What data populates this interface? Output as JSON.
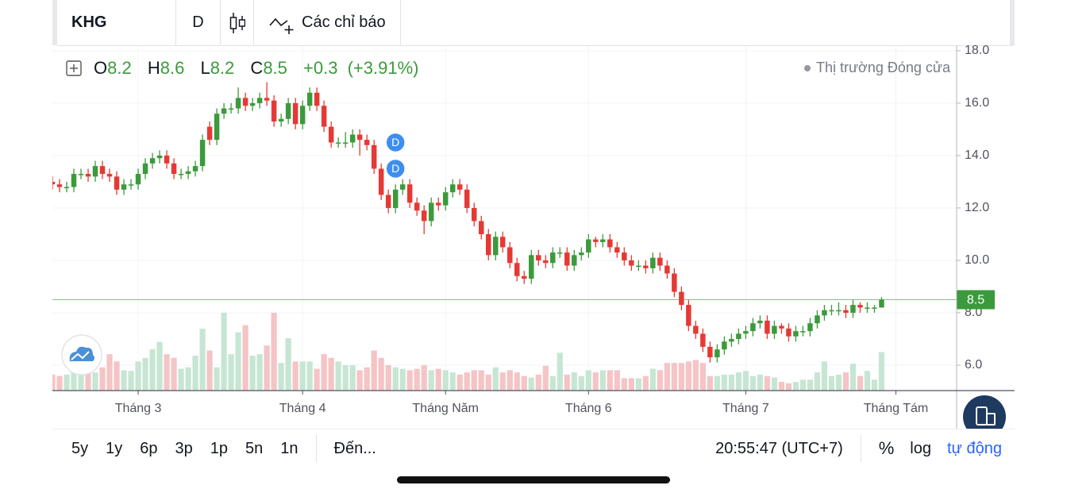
{
  "toolbar": {
    "symbol": "KHG",
    "interval": "D",
    "indicators": "Các chỉ báo"
  },
  "legend": {
    "open_label": "O",
    "high_label": "H",
    "low_label": "L",
    "close_label": "C",
    "change": "+0.3",
    "change_pct": "(+3.91%)"
  },
  "market_status": "Thị trường Đóng cửa",
  "bottom_bar": {
    "ranges": [
      "5y",
      "1y",
      "6p",
      "3p",
      "1p",
      "5n",
      "1n"
    ],
    "goto": "Đến...",
    "time": "20:55:47 (UTC+7)",
    "percent": "%",
    "log": "log",
    "auto": "tự động"
  },
  "chart_data": {
    "type": "candlestick",
    "xlim": [
      0,
      126.5
    ],
    "xticks": [
      {
        "value": 12,
        "label": "Tháng 3"
      },
      {
        "value": 35,
        "label": "Tháng 4"
      },
      {
        "value": 55,
        "label": "Tháng Năm"
      },
      {
        "value": 75,
        "label": "Tháng 6"
      },
      {
        "value": 97,
        "label": "Tháng 7"
      },
      {
        "value": 118,
        "label": "Tháng Tám"
      }
    ],
    "ylim": [
      5.03,
      18.18
    ],
    "yticks": [
      {
        "value": 6,
        "label": "6.0"
      },
      {
        "value": 8,
        "label": "8.0"
      },
      {
        "value": 10,
        "label": "10.0"
      },
      {
        "value": 12,
        "label": "12.0"
      },
      {
        "value": 14,
        "label": "14.0"
      },
      {
        "value": 16,
        "label": "16.0"
      },
      {
        "value": 18,
        "label": "18.0"
      }
    ],
    "grid": true,
    "up_color": "#3b9a3b",
    "down_color": "#e53935",
    "volume_up_color": "#c6e6d3",
    "volume_down_color": "#f5c4c6",
    "open": [
      13.0,
      12.9,
      12.8,
      12.8,
      13.3,
      13.3,
      13.2,
      13.6,
      13.3,
      13.2,
      12.7,
      12.9,
      12.9,
      13.3,
      13.7,
      13.9,
      14.0,
      13.7,
      13.3,
      13.3,
      13.4,
      13.6,
      15.1,
      14.6,
      15.6,
      15.8,
      15.8,
      16.2,
      15.9,
      16.0,
      16.2,
      16.1,
      15.3,
      15.4,
      16.0,
      15.2,
      15.9,
      16.4,
      15.9,
      15.1,
      14.5,
      14.5,
      14.5,
      14.8,
      14.6,
      14.4,
      13.5,
      12.5,
      12.0,
      12.7,
      12.9,
      12.2,
      11.9,
      11.5,
      12.2,
      12.1,
      12.6,
      12.9,
      12.7,
      12.0,
      11.5,
      11.0,
      10.2,
      10.9,
      10.5,
      9.9,
      9.4,
      9.3,
      10.2,
      10.0,
      9.9,
      10.3,
      10.3,
      9.8,
      10.2,
      10.3,
      10.8,
      10.7,
      10.8,
      10.5,
      10.3,
      10.0,
      9.8,
      9.8,
      9.7,
      10.1,
      9.8,
      9.5,
      8.8,
      8.3,
      7.5,
      7.2,
      6.7,
      6.3,
      6.6,
      6.9,
      7.0,
      7.2,
      7.3,
      7.6,
      7.7,
      7.2,
      7.5,
      7.4,
      7.1,
      7.3,
      7.3,
      7.6,
      7.9,
      8.1,
      8.1,
      8.1,
      8.0,
      8.3,
      8.2,
      8.2,
      8.2
    ],
    "high": [
      13.2,
      13.1,
      13.0,
      13.5,
      13.5,
      13.5,
      13.8,
      13.8,
      13.5,
      13.4,
      13.1,
      13.1,
      13.5,
      13.9,
      14.1,
      14.2,
      14.2,
      13.9,
      13.5,
      13.6,
      13.8,
      14.8,
      15.3,
      15.8,
      16.0,
      16.0,
      16.6,
      16.4,
      16.2,
      16.4,
      16.8,
      16.3,
      15.6,
      16.2,
      16.2,
      16.1,
      16.6,
      16.6,
      16.1,
      15.3,
      14.7,
      14.9,
      15.0,
      15.0,
      14.8,
      14.6,
      13.7,
      12.7,
      12.9,
      13.1,
      13.1,
      12.4,
      12.1,
      12.4,
      12.4,
      12.8,
      13.1,
      13.1,
      12.9,
      12.2,
      11.7,
      11.2,
      11.1,
      11.1,
      10.7,
      10.1,
      9.6,
      10.4,
      10.4,
      10.2,
      10.5,
      10.5,
      10.5,
      10.4,
      10.5,
      11.0,
      10.9,
      11.0,
      11.0,
      10.7,
      10.5,
      10.2,
      10.0,
      10.0,
      10.3,
      10.3,
      10.0,
      9.7,
      9.0,
      8.5,
      7.7,
      7.4,
      6.9,
      6.8,
      7.1,
      7.2,
      7.4,
      7.5,
      7.8,
      7.9,
      7.9,
      7.7,
      7.6,
      7.6,
      7.5,
      7.5,
      7.8,
      8.1,
      8.3,
      8.3,
      8.4,
      8.3,
      8.5,
      8.4,
      8.4,
      8.3,
      8.6
    ],
    "low": [
      12.7,
      12.6,
      12.6,
      12.6,
      13.1,
      13.0,
      13.0,
      13.1,
      13.0,
      12.5,
      12.5,
      12.7,
      12.7,
      13.1,
      13.5,
      13.7,
      13.5,
      13.1,
      13.1,
      13.1,
      13.2,
      13.4,
      14.4,
      14.4,
      15.4,
      15.6,
      15.6,
      15.7,
      15.7,
      15.8,
      15.9,
      15.1,
      15.1,
      15.2,
      15.0,
      15.0,
      15.7,
      15.7,
      14.9,
      14.3,
      14.3,
      14.3,
      14.3,
      14.0,
      14.2,
      13.3,
      12.3,
      11.8,
      11.8,
      12.5,
      12.0,
      11.7,
      11.0,
      11.3,
      11.9,
      11.9,
      12.4,
      12.5,
      11.8,
      11.3,
      10.8,
      10.0,
      10.0,
      10.3,
      9.7,
      9.2,
      9.1,
      9.1,
      9.8,
      9.7,
      9.7,
      10.1,
      9.6,
      9.6,
      10.0,
      10.1,
      10.5,
      10.5,
      10.3,
      10.1,
      9.8,
      9.6,
      9.6,
      9.5,
      9.5,
      9.6,
      9.3,
      8.6,
      8.1,
      7.3,
      7.0,
      6.5,
      6.1,
      6.1,
      6.4,
      6.7,
      6.8,
      7.0,
      7.1,
      7.4,
      7.0,
      7.0,
      7.2,
      6.9,
      6.9,
      7.1,
      7.1,
      7.4,
      7.7,
      7.9,
      7.9,
      7.8,
      7.8,
      8.0,
      8.0,
      8.0,
      8.2
    ],
    "close": [
      12.9,
      12.8,
      12.8,
      13.3,
      13.3,
      13.2,
      13.6,
      13.3,
      13.2,
      12.7,
      12.9,
      12.9,
      13.3,
      13.7,
      13.9,
      14.0,
      13.7,
      13.3,
      13.3,
      13.4,
      13.6,
      14.6,
      14.6,
      15.6,
      15.8,
      15.8,
      16.2,
      15.9,
      16.0,
      16.2,
      16.1,
      15.3,
      15.4,
      16.0,
      15.2,
      15.9,
      16.4,
      15.9,
      15.1,
      14.5,
      14.5,
      14.5,
      14.8,
      14.6,
      14.4,
      13.5,
      12.5,
      12.0,
      12.7,
      12.9,
      12.2,
      11.9,
      11.5,
      12.2,
      12.1,
      12.6,
      12.9,
      12.7,
      12.0,
      11.5,
      11.0,
      10.2,
      10.9,
      10.5,
      9.9,
      9.4,
      9.3,
      10.2,
      10.0,
      9.9,
      10.3,
      10.3,
      9.8,
      10.2,
      10.3,
      10.8,
      10.7,
      10.8,
      10.5,
      10.3,
      10.0,
      9.8,
      9.8,
      9.7,
      10.1,
      9.8,
      9.5,
      8.8,
      8.3,
      7.5,
      7.2,
      6.7,
      6.3,
      6.6,
      6.9,
      7.0,
      7.2,
      7.3,
      7.6,
      7.7,
      7.2,
      7.5,
      7.4,
      7.1,
      7.3,
      7.3,
      7.6,
      7.9,
      8.1,
      8.1,
      8.1,
      8.0,
      8.3,
      8.2,
      8.2,
      8.2,
      8.5
    ],
    "volume": [
      22,
      20,
      22,
      25,
      30,
      40,
      25,
      32,
      50,
      40,
      28,
      27,
      40,
      45,
      57,
      67,
      50,
      45,
      30,
      32,
      48,
      85,
      55,
      32,
      107,
      50,
      80,
      90,
      48,
      50,
      62,
      107,
      38,
      72,
      40,
      40,
      40,
      30,
      50,
      45,
      40,
      35,
      35,
      28,
      32,
      55,
      45,
      35,
      32,
      30,
      28,
      30,
      35,
      28,
      30,
      28,
      25,
      22,
      25,
      28,
      28,
      22,
      32,
      25,
      28,
      25,
      20,
      18,
      22,
      34,
      20,
      52,
      22,
      25,
      20,
      28,
      25,
      28,
      28,
      28,
      17,
      17,
      17,
      20,
      30,
      28,
      38,
      38,
      38,
      40,
      42,
      38,
      20,
      20,
      22,
      22,
      25,
      27,
      20,
      22,
      20,
      18,
      12,
      10,
      12,
      15,
      15,
      25,
      40,
      20,
      22,
      25,
      37,
      20,
      27,
      15,
      53
    ],
    "vlim": [
      0,
      120
    ],
    "events": [
      {
        "label": "D",
        "index": 46,
        "price": 14.5
      },
      {
        "label": "D",
        "index": 46,
        "price": 13.5
      }
    ]
  }
}
